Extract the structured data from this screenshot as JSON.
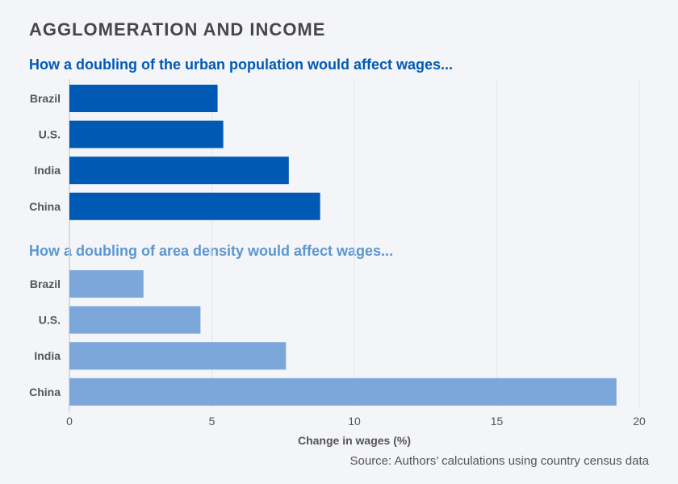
{
  "chart_data": {
    "type": "bar",
    "orientation": "horizontal",
    "title": "AGGLOMERATION AND INCOME",
    "xlabel": "Change in wages (%)",
    "xlim": [
      0,
      20
    ],
    "xticks": [
      0,
      5,
      10,
      15,
      20
    ],
    "grid": true,
    "source": "Source: Authors’ calculations using country census data",
    "panels": [
      {
        "subtitle": "How a doubling of the urban population would affect wages...",
        "color": "#005ab4",
        "categories": [
          "Brazil",
          "U.S.",
          "India",
          "China"
        ],
        "values": [
          5.2,
          5.4,
          7.7,
          8.8
        ]
      },
      {
        "subtitle": "How a doubling of area density would affect wages...",
        "color": "#7ca7da",
        "categories": [
          "Brazil",
          "U.S.",
          "India",
          "China"
        ],
        "values": [
          2.6,
          4.6,
          7.6,
          19.2
        ]
      }
    ]
  }
}
